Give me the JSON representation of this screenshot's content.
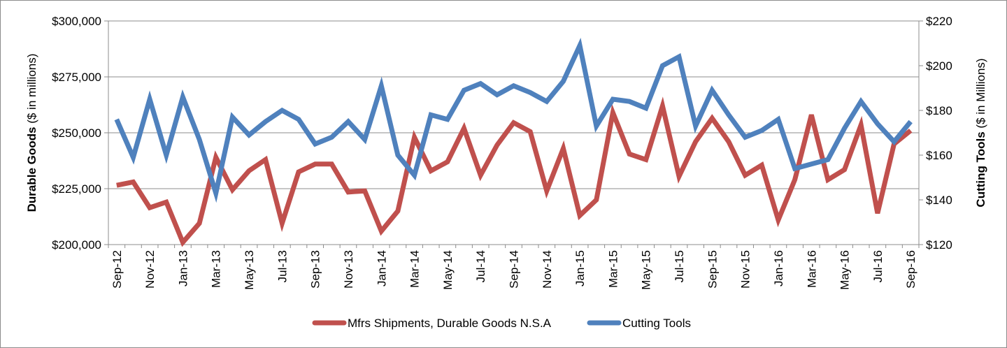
{
  "chart_data": {
    "type": "line",
    "categories": [
      "Sep-12",
      "Oct-12",
      "Nov-12",
      "Dec-12",
      "Jan-13",
      "Feb-13",
      "Mar-13",
      "Apr-13",
      "May-13",
      "Jun-13",
      "Jul-13",
      "Aug-13",
      "Sep-13",
      "Oct-13",
      "Nov-13",
      "Dec-13",
      "Jan-14",
      "Feb-14",
      "Mar-14",
      "Apr-14",
      "May-14",
      "Jun-14",
      "Jul-14",
      "Aug-14",
      "Sep-14",
      "Oct-14",
      "Nov-14",
      "Dec-14",
      "Jan-15",
      "Feb-15",
      "Mar-15",
      "Apr-15",
      "May-15",
      "Jun-15",
      "Jul-15",
      "Aug-15",
      "Sep-15",
      "Oct-15",
      "Nov-15",
      "Dec-15",
      "Jan-16",
      "Feb-16",
      "Mar-16",
      "Apr-16",
      "May-16",
      "Jun-16",
      "Jul-16",
      "Aug-16",
      "Sep-16"
    ],
    "x_tick_labels": [
      "Sep-12",
      "Nov-12",
      "Jan-13",
      "Mar-13",
      "May-13",
      "Jul-13",
      "Sep-13",
      "Nov-13",
      "Jan-14",
      "Mar-14",
      "May-14",
      "Jul-14",
      "Sep-14",
      "Nov-14",
      "Jan-15",
      "Mar-15",
      "May-15",
      "Jul-15",
      "Sep-15",
      "Nov-15",
      "Jan-16",
      "Mar-16",
      "May-16",
      "Jul-16",
      "Sep-16"
    ],
    "y_left": {
      "label_bold": "Durable Goods",
      "label_rest": " ($ in millions)",
      "min": 200000,
      "max": 300000,
      "tick_values": [
        200000,
        225000,
        250000,
        275000,
        300000
      ],
      "tick_labels": [
        "$200,000",
        "$225,000",
        "$250,000",
        "$275,000",
        "$300,000"
      ]
    },
    "y_right": {
      "label_bold": "Cutting Tools",
      "label_rest": " ($ in Millions)",
      "min": 120,
      "max": 220,
      "tick_values": [
        120,
        140,
        160,
        180,
        200,
        220
      ],
      "tick_labels": [
        "$120",
        "$140",
        "$160",
        "$180",
        "$200",
        "$220"
      ]
    },
    "grid": true,
    "legend_position": "bottom",
    "series": [
      {
        "name": "Mfrs Shipments, Durable Goods N.S.A",
        "axis": "left",
        "color": "#c0504d",
        "values": [
          226500,
          228000,
          216500,
          219000,
          201000,
          209500,
          239000,
          224500,
          233000,
          238000,
          209500,
          232500,
          236000,
          236000,
          223500,
          224000,
          206000,
          215000,
          248000,
          233000,
          237000,
          252000,
          231000,
          244500,
          254500,
          250500,
          224000,
          243000,
          213000,
          220000,
          259000,
          240500,
          238000,
          262000,
          230500,
          246000,
          256500,
          246000,
          231000,
          235500,
          211000,
          229000,
          258000,
          229000,
          233500,
          253500,
          214000,
          245000,
          251000
        ]
      },
      {
        "name": "Cutting Tools",
        "axis": "right",
        "color": "#4f81bd",
        "values": [
          176,
          159,
          185,
          160,
          186,
          167,
          143,
          177,
          169,
          175,
          180,
          176,
          165,
          168,
          175,
          167,
          191,
          160,
          151,
          178,
          176,
          189,
          192,
          187,
          191,
          188,
          184,
          193,
          209,
          173,
          185,
          184,
          181,
          200,
          204,
          173,
          189,
          178,
          168,
          171,
          176,
          154,
          156,
          158,
          172,
          184,
          174,
          166,
          175
        ]
      }
    ]
  }
}
